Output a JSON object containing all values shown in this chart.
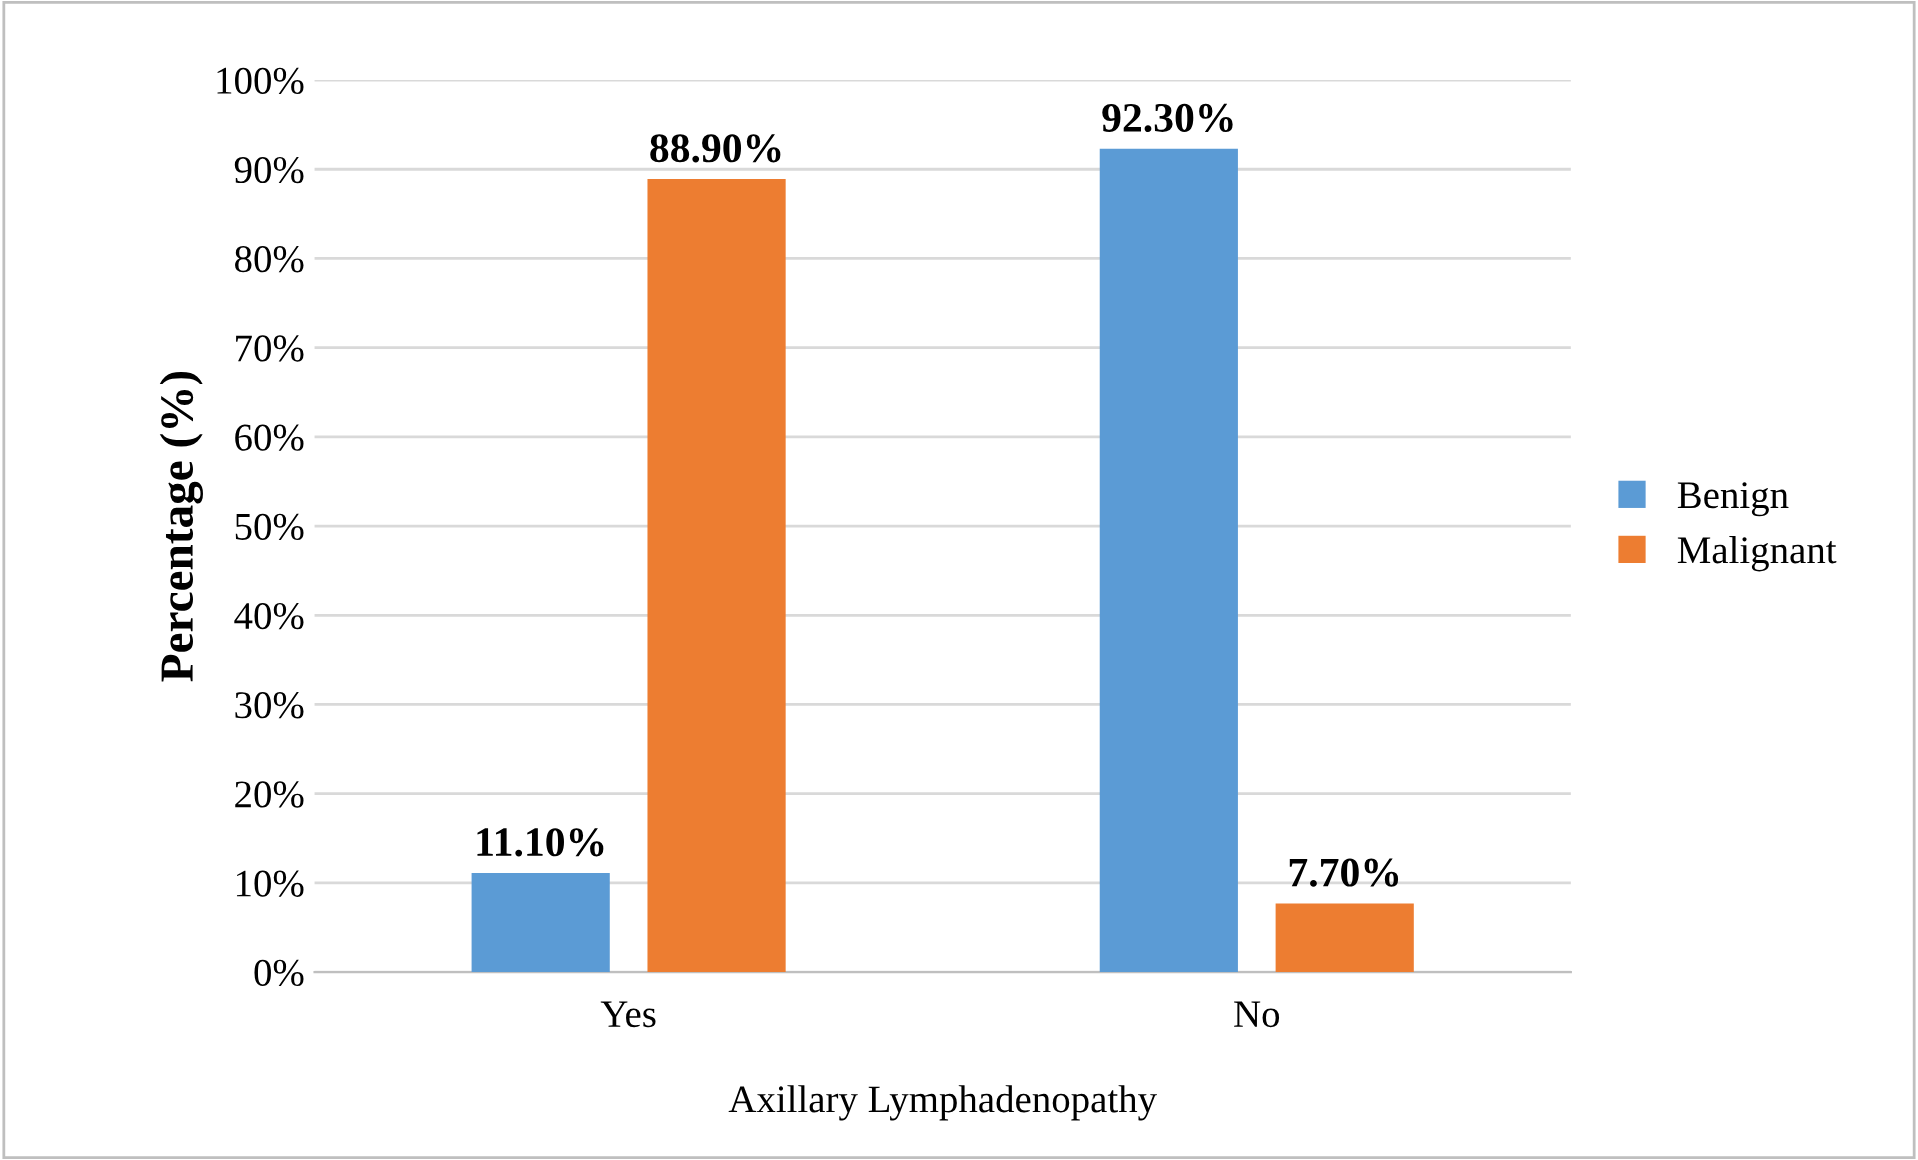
{
  "chart_data": {
    "type": "bar",
    "categories": [
      "Yes",
      "No"
    ],
    "xlabel": "Axillary Lymphadenopathy",
    "ylabel": "Percentage (%)",
    "series": [
      {
        "name": "Benign",
        "color": "#5b9bd5",
        "values": [
          11.1,
          92.3
        ],
        "value_labels": [
          "11.10%",
          "92.30%"
        ]
      },
      {
        "name": "Malignant",
        "color": "#ed7d31",
        "values": [
          88.9,
          7.7
        ],
        "value_labels": [
          "88.90%",
          "7.70%"
        ]
      }
    ],
    "ylim": [
      0,
      100
    ],
    "yticks": [
      {
        "value": 0,
        "label": "0%"
      },
      {
        "value": 10,
        "label": "10%"
      },
      {
        "value": 20,
        "label": "20%"
      },
      {
        "value": 30,
        "label": "30%"
      },
      {
        "value": 40,
        "label": "40%"
      },
      {
        "value": 50,
        "label": "50%"
      },
      {
        "value": 60,
        "label": "60%"
      },
      {
        "value": 70,
        "label": "70%"
      },
      {
        "value": 80,
        "label": "80%"
      },
      {
        "value": 90,
        "label": "90%"
      },
      {
        "value": 100,
        "label": "100%"
      }
    ],
    "grid": "y",
    "legend": "right"
  }
}
